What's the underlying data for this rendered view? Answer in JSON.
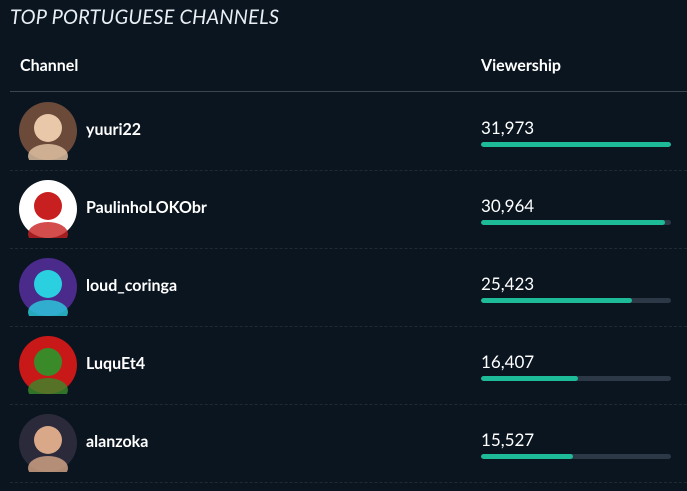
{
  "header": {
    "title": "TOP PORTUGUESE CHANNELS"
  },
  "table": {
    "columns": [
      "Channel",
      "Viewership"
    ],
    "rows": [
      {
        "channel": "yuuri22",
        "viewership": {
          "value": 31973,
          "label": "31,973"
        }
      },
      {
        "channel": "PaulinhoLOKObr",
        "viewership": {
          "value": 30964,
          "label": "30,964"
        }
      },
      {
        "channel": "loud_coringa",
        "viewership": {
          "value": 25423,
          "label": "25,423"
        }
      },
      {
        "channel": "LuquEt4",
        "viewership": {
          "value": 16407,
          "label": "16,407"
        }
      },
      {
        "channel": "alanzoka",
        "viewership": {
          "value": 15527,
          "label": "15,527"
        }
      }
    ]
  }
}
